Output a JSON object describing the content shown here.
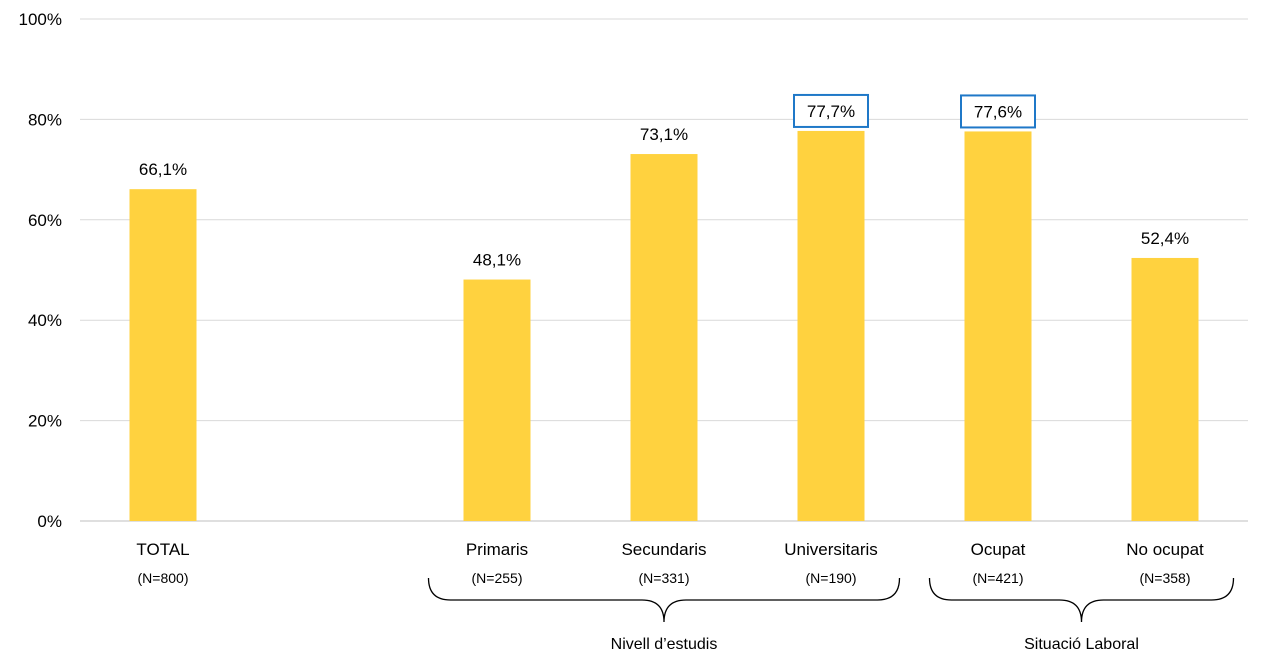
{
  "chart_data": {
    "type": "bar",
    "categories": [
      "TOTAL",
      "Primaris",
      "Secundaris",
      "Universitaris",
      "Ocupat",
      "No ocupat"
    ],
    "sample_sizes": [
      "(N=800)",
      "(N=255)",
      "(N=331)",
      "(N=190)",
      "(N=421)",
      "(N=358)"
    ],
    "values": [
      66.1,
      48.1,
      73.1,
      77.7,
      77.6,
      52.4
    ],
    "value_labels": [
      "66,1%",
      "48,1%",
      "73,1%",
      "77,7%",
      "77,6%",
      "52,4%"
    ],
    "highlighted": [
      false,
      false,
      false,
      true,
      true,
      false
    ],
    "ylim": [
      0,
      100
    ],
    "yticks": [
      0,
      20,
      40,
      60,
      80,
      100
    ],
    "ytick_labels": [
      "0%",
      "20%",
      "40%",
      "60%",
      "80%",
      "100%"
    ],
    "groups": [
      {
        "label": "Nivell d’estudis",
        "members": [
          "Primaris",
          "Secundaris",
          "Universitaris"
        ]
      },
      {
        "label": "Situació Laboral",
        "members": [
          "Ocupat",
          "No ocupat"
        ]
      }
    ],
    "grid": true,
    "legend": "none",
    "colors": {
      "bar": "#FFD23F",
      "highlight_box": "#1F78C8",
      "grid": "#D9D9D9"
    }
  }
}
